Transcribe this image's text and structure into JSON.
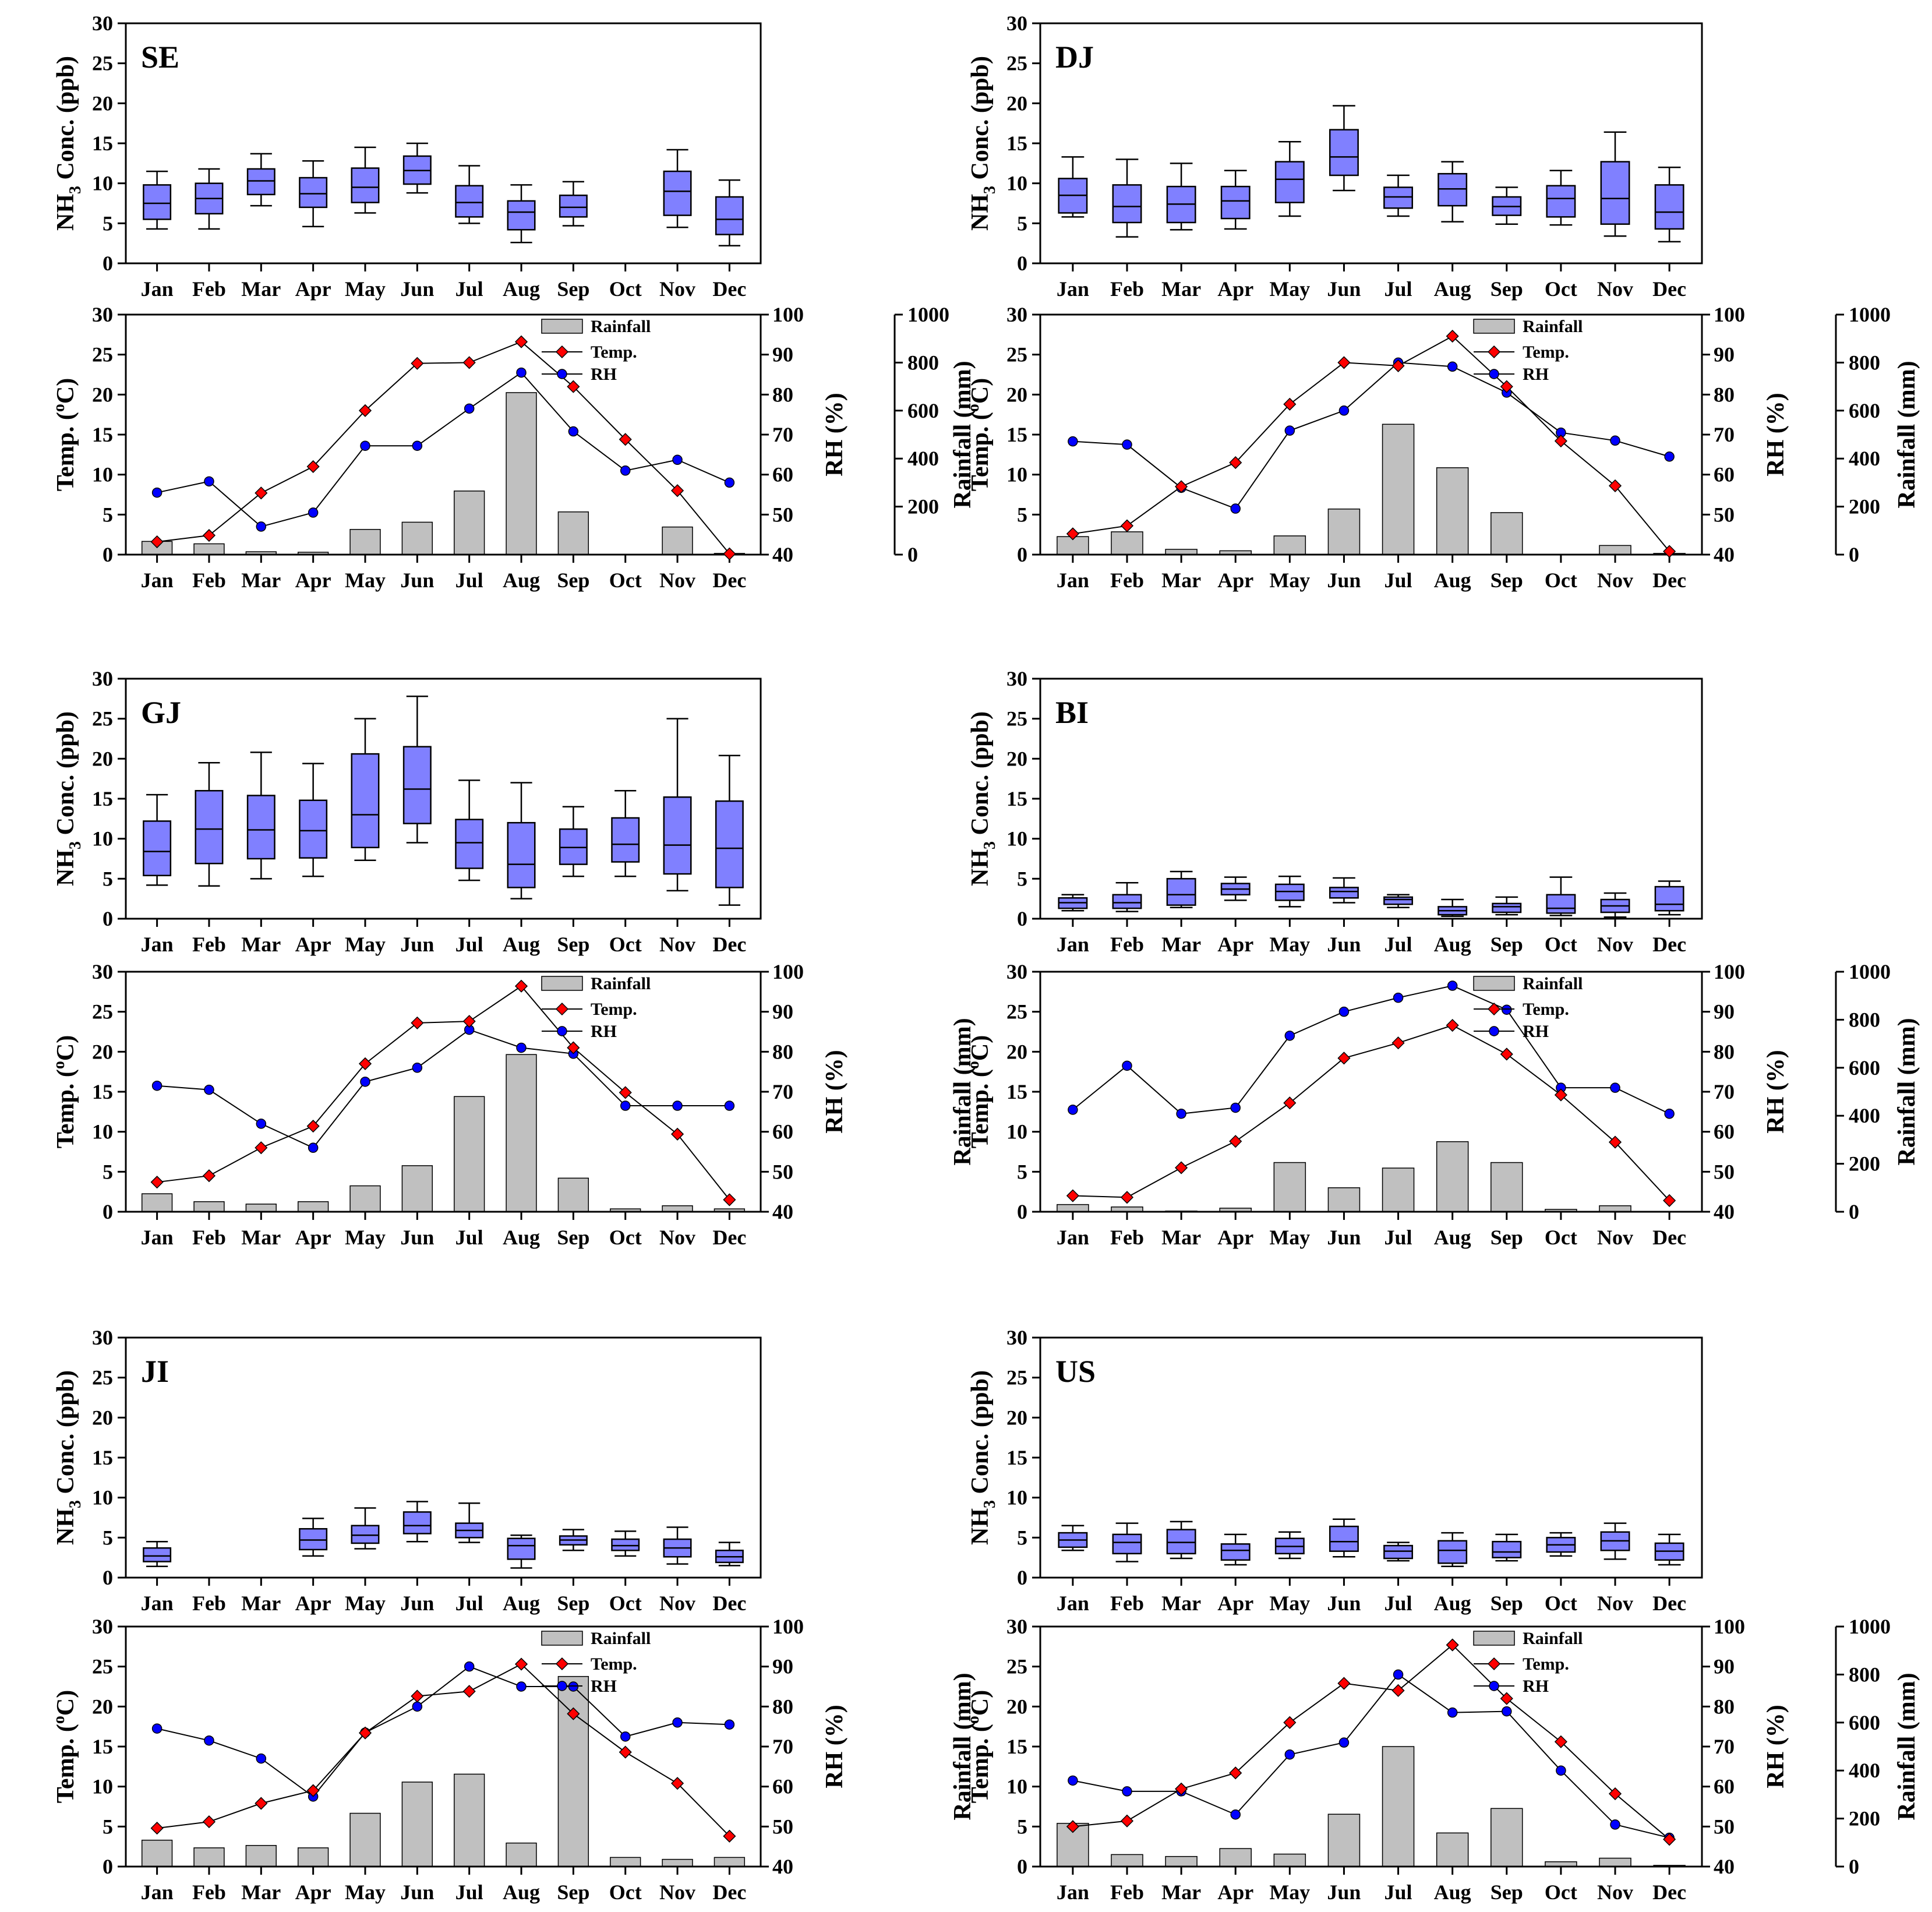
{
  "colors": {
    "box": "#8080ff",
    "bar": "#c0c0c0",
    "temp": "#ff0000",
    "rh": "#0000ff"
  },
  "chart_data": [
    {
      "type": "figure-panel",
      "label": "SE",
      "months": [
        "Jan",
        "Feb",
        "Mar",
        "Apr",
        "May",
        "Jun",
        "Jul",
        "Aug",
        "Sep",
        "Oct",
        "Nov",
        "Dec"
      ],
      "box": {
        "ylabel_main": "NH",
        "ylabel_sub": "3",
        "ylabel_rest": " Conc. (ppb)",
        "ylim": [
          0,
          30
        ],
        "yticks": [
          "0",
          "5",
          "10",
          "15",
          "20",
          "25",
          "30"
        ],
        "stats": [
          [
            4.3,
            5.5,
            7.5,
            9.8,
            11.5
          ],
          [
            4.3,
            6.2,
            8.1,
            10.0,
            11.8
          ],
          [
            7.2,
            8.6,
            10.3,
            11.8,
            13.7
          ],
          [
            4.6,
            7.0,
            8.7,
            10.7,
            12.8
          ],
          [
            6.3,
            7.6,
            9.5,
            11.9,
            14.5
          ],
          [
            8.8,
            9.9,
            11.6,
            13.4,
            15.0
          ],
          [
            5.0,
            5.8,
            7.6,
            9.7,
            12.2
          ],
          [
            2.6,
            4.2,
            6.4,
            7.8,
            9.8
          ],
          [
            4.7,
            5.8,
            7.0,
            8.5,
            10.2
          ],
          null,
          [
            4.5,
            6.0,
            9.0,
            11.5,
            14.2
          ],
          [
            2.2,
            3.6,
            5.5,
            8.3,
            10.4
          ]
        ]
      },
      "met": {
        "temp_label": "Temp. (",
        "temp_unit": "C)",
        "degree": "o",
        "rh_label": "RH (%)",
        "rain_label": "Rainfall (mm)",
        "temp_lim": [
          0,
          30
        ],
        "temp_ticks": [
          "0",
          "5",
          "10",
          "15",
          "20",
          "25",
          "30"
        ],
        "rh_lim": [
          40,
          100
        ],
        "rh_ticks": [
          "40",
          "50",
          "60",
          "70",
          "80",
          "90",
          "100"
        ],
        "rain_lim": [
          0,
          1000
        ],
        "rain_ticks": [
          "0",
          "200",
          "400",
          "600",
          "800",
          "1000"
        ],
        "legend": [
          "Rainfall",
          "Temp.",
          "RH"
        ],
        "rainfall": [
          55,
          45,
          12,
          10,
          105,
          135,
          265,
          675,
          178,
          0,
          115,
          5
        ],
        "temp": [
          1.6,
          2.4,
          7.7,
          11.0,
          18.0,
          23.9,
          24.0,
          26.6,
          21.0,
          14.4,
          8.0,
          0.1
        ],
        "rh": [
          55.5,
          58.3,
          47,
          50.5,
          67.2,
          67.2,
          76.5,
          85.5,
          70.8,
          61,
          63.7,
          58
        ]
      }
    },
    {
      "type": "figure-panel",
      "label": "DJ",
      "months": [
        "Jan",
        "Feb",
        "Mar",
        "Apr",
        "May",
        "Jun",
        "Jul",
        "Aug",
        "Sep",
        "Oct",
        "Nov",
        "Dec"
      ],
      "box": {
        "ylabel_main": "NH",
        "ylabel_sub": "3",
        "ylabel_rest": " Conc. (ppb)",
        "ylim": [
          0,
          30
        ],
        "yticks": [
          "0",
          "5",
          "10",
          "15",
          "20",
          "25",
          "30"
        ],
        "stats": [
          [
            5.8,
            6.3,
            8.5,
            10.6,
            13.3
          ],
          [
            3.3,
            5.1,
            7.1,
            9.8,
            13.0
          ],
          [
            4.2,
            5.1,
            7.4,
            9.6,
            12.5
          ],
          [
            4.3,
            5.6,
            7.8,
            9.6,
            11.6
          ],
          [
            5.9,
            7.6,
            10.5,
            12.7,
            15.2
          ],
          [
            9.1,
            11.0,
            13.3,
            16.7,
            19.7
          ],
          [
            5.9,
            6.9,
            8.3,
            9.5,
            11.0
          ],
          [
            5.2,
            7.2,
            9.3,
            11.2,
            12.7
          ],
          [
            4.9,
            6.0,
            7.1,
            8.3,
            9.5
          ],
          [
            4.8,
            5.8,
            8.1,
            9.7,
            11.6
          ],
          [
            3.4,
            4.9,
            8.1,
            12.7,
            16.4
          ],
          [
            2.7,
            4.3,
            6.4,
            9.8,
            12.0
          ]
        ]
      },
      "met": {
        "temp_label": "Temp. (",
        "temp_unit": "C)",
        "degree": "o",
        "rh_label": "RH (%)",
        "rain_label": "Rainfall (mm)",
        "temp_lim": [
          0,
          30
        ],
        "temp_ticks": [
          "0",
          "5",
          "10",
          "15",
          "20",
          "25",
          "30"
        ],
        "rh_lim": [
          40,
          100
        ],
        "rh_ticks": [
          "40",
          "50",
          "60",
          "70",
          "80",
          "90",
          "100"
        ],
        "rain_lim": [
          0,
          1000
        ],
        "rain_ticks": [
          "0",
          "200",
          "400",
          "600",
          "800",
          "1000"
        ],
        "legend": [
          "Rainfall",
          "Temp.",
          "RH"
        ],
        "rainfall": [
          75,
          95,
          22,
          16,
          78,
          190,
          543,
          362,
          175,
          0,
          38,
          5
        ],
        "temp": [
          2.6,
          3.6,
          8.5,
          11.5,
          18.8,
          24.0,
          23.6,
          27.3,
          21.0,
          14.2,
          8.6,
          0.4
        ],
        "rh": [
          68.3,
          67.5,
          56.7,
          51.5,
          71,
          76,
          88,
          87,
          80.5,
          70.5,
          68.5,
          64.5
        ]
      }
    },
    {
      "type": "figure-panel",
      "label": "GJ",
      "months": [
        "Jan",
        "Feb",
        "Mar",
        "Apr",
        "May",
        "Jun",
        "Jul",
        "Aug",
        "Sep",
        "Oct",
        "Nov",
        "Dec"
      ],
      "box": {
        "ylabel_main": "NH",
        "ylabel_sub": "3",
        "ylabel_rest": " Conc. (ppb)",
        "ylim": [
          0,
          30
        ],
        "yticks": [
          "0",
          "5",
          "10",
          "15",
          "20",
          "25",
          "30"
        ],
        "stats": [
          [
            4.2,
            5.4,
            8.4,
            12.2,
            15.5
          ],
          [
            4.1,
            6.9,
            11.2,
            16.0,
            19.5
          ],
          [
            5.0,
            7.5,
            11.1,
            15.4,
            20.8
          ],
          [
            5.3,
            7.6,
            11.0,
            14.8,
            19.4
          ],
          [
            7.3,
            8.9,
            13.0,
            20.6,
            25.0
          ],
          [
            9.5,
            11.9,
            16.2,
            21.5,
            27.8
          ],
          [
            4.8,
            6.3,
            9.5,
            12.4,
            17.3
          ],
          [
            2.5,
            3.9,
            6.8,
            12.0,
            17.0
          ],
          [
            5.3,
            6.8,
            8.9,
            11.2,
            14.0
          ],
          [
            5.3,
            7.1,
            9.3,
            12.6,
            16.0
          ],
          [
            3.5,
            5.6,
            9.2,
            15.2,
            25.0
          ],
          [
            1.7,
            3.9,
            8.8,
            14.7,
            20.4
          ]
        ]
      },
      "met": {
        "temp_label": "Temp. (",
        "temp_unit": "C)",
        "degree": "o",
        "rh_label": "RH (%)",
        "rain_label": "Rainfall (mm)",
        "temp_lim": [
          0,
          30
        ],
        "temp_ticks": [
          "0",
          "5",
          "10",
          "15",
          "20",
          "25",
          "30"
        ],
        "rh_lim": [
          40,
          100
        ],
        "rh_ticks": [
          "40",
          "50",
          "60",
          "70",
          "80",
          "90",
          "100"
        ],
        "rainfall": [
          75,
          42,
          32,
          42,
          108,
          192,
          480,
          655,
          140,
          12,
          25,
          12
        ],
        "legend": [
          "Rainfall",
          "Temp.",
          "RH"
        ],
        "temp": [
          3.7,
          4.5,
          8.0,
          10.7,
          18.5,
          23.6,
          23.8,
          28.2,
          20.5,
          14.9,
          9.7,
          1.5
        ],
        "rh": [
          71.5,
          70.5,
          62,
          56,
          72.5,
          76,
          85.5,
          81,
          79.5,
          66.5,
          66.5,
          66.5
        ]
      }
    },
    {
      "type": "figure-panel",
      "label": "BI",
      "months": [
        "Jan",
        "Feb",
        "Mar",
        "Apr",
        "May",
        "Jun",
        "Jul",
        "Aug",
        "Sep",
        "Oct",
        "Nov",
        "Dec"
      ],
      "box": {
        "ylabel_main": "NH",
        "ylabel_sub": "3",
        "ylabel_rest": " Conc. (ppb)",
        "ylim": [
          0,
          30
        ],
        "yticks": [
          "0",
          "5",
          "10",
          "15",
          "20",
          "25",
          "30"
        ],
        "stats": [
          [
            1.0,
            1.3,
            2.0,
            2.6,
            3.0
          ],
          [
            0.9,
            1.3,
            2.0,
            3.0,
            4.5
          ],
          [
            1.4,
            1.7,
            3.0,
            5.0,
            5.9
          ],
          [
            2.3,
            3.0,
            3.7,
            4.4,
            5.2
          ],
          [
            1.5,
            2.3,
            3.4,
            4.3,
            5.3
          ],
          [
            2.0,
            2.6,
            3.4,
            3.9,
            5.1
          ],
          [
            1.4,
            1.8,
            2.4,
            2.7,
            3.0
          ],
          [
            0.3,
            0.5,
            1.0,
            1.5,
            2.4
          ],
          [
            0.5,
            0.8,
            1.5,
            1.9,
            2.7
          ],
          [
            0.4,
            0.7,
            1.3,
            3.0,
            5.2
          ],
          [
            0.2,
            0.8,
            1.6,
            2.4,
            3.2
          ],
          [
            0.5,
            1.0,
            1.8,
            4.0,
            4.7
          ]
        ]
      },
      "met": {
        "temp_label": "Temp. (",
        "temp_unit": "C)",
        "degree": "o",
        "rh_label": "RH (%)",
        "rain_label": "Rainfall (mm)",
        "temp_lim": [
          0,
          30
        ],
        "temp_ticks": [
          "0",
          "5",
          "10",
          "15",
          "20",
          "25",
          "30"
        ],
        "rh_lim": [
          40,
          100
        ],
        "rh_ticks": [
          "40",
          "50",
          "60",
          "70",
          "80",
          "90",
          "100"
        ],
        "rain_lim": [
          0,
          1000
        ],
        "rain_ticks": [
          "0",
          "200",
          "400",
          "600",
          "800",
          "1000"
        ],
        "legend": [
          "Rainfall",
          "Temp.",
          "RH"
        ],
        "rainfall": [
          30,
          20,
          3,
          15,
          205,
          100,
          182,
          292,
          205,
          10,
          25,
          0
        ],
        "temp": [
          2.0,
          1.8,
          5.5,
          8.8,
          13.6,
          19.2,
          21.1,
          23.3,
          19.7,
          14.6,
          8.7,
          1.4
        ],
        "rh": [
          65.5,
          76.5,
          64.5,
          66,
          84,
          90,
          93.5,
          96.5,
          90.5,
          71,
          71,
          64.5
        ]
      }
    },
    {
      "type": "figure-panel",
      "label": "JI",
      "months": [
        "Jan",
        "Feb",
        "Mar",
        "Apr",
        "May",
        "Jun",
        "Jul",
        "Aug",
        "Sep",
        "Oct",
        "Nov",
        "Dec"
      ],
      "box": {
        "ylabel_main": "NH",
        "ylabel_sub": "3",
        "ylabel_rest": " Conc. (ppb)",
        "ylim": [
          0,
          30
        ],
        "yticks": [
          "0",
          "5",
          "10",
          "15",
          "20",
          "25",
          "30"
        ],
        "stats": [
          [
            1.4,
            2.0,
            2.7,
            3.7,
            4.5
          ],
          null,
          null,
          [
            2.7,
            3.5,
            4.7,
            6.1,
            7.4
          ],
          [
            3.6,
            4.3,
            5.3,
            6.5,
            8.7
          ],
          [
            4.5,
            5.5,
            6.5,
            8.2,
            9.5
          ],
          [
            4.4,
            5.0,
            5.9,
            6.8,
            9.3
          ],
          [
            1.2,
            2.3,
            4.0,
            4.9,
            5.3
          ],
          [
            3.4,
            4.1,
            4.7,
            5.2,
            6.0
          ],
          [
            2.7,
            3.4,
            4.0,
            4.8,
            5.8
          ],
          [
            1.7,
            2.6,
            3.7,
            4.8,
            6.3
          ],
          [
            1.5,
            1.9,
            2.6,
            3.4,
            4.4
          ]
        ]
      },
      "met": {
        "temp_label": "Temp. (",
        "temp_unit": "C)",
        "degree": "o",
        "rh_label": "RH (%)",
        "rain_label": "Rainfall (mm)",
        "temp_lim": [
          0,
          30
        ],
        "temp_ticks": [
          "0",
          "5",
          "10",
          "15",
          "20",
          "25",
          "30"
        ],
        "rh_lim": [
          40,
          100
        ],
        "rh_ticks": [
          "40",
          "50",
          "60",
          "70",
          "80",
          "90",
          "100"
        ],
        "legend": [
          "Rainfall",
          "Temp.",
          "RH"
        ],
        "rainfall": [
          110,
          78,
          88,
          78,
          222,
          352,
          385,
          98,
          792,
          38,
          30,
          38
        ],
        "temp": [
          4.8,
          5.6,
          7.9,
          9.5,
          16.7,
          21.3,
          21.9,
          25.3,
          19.1,
          14.3,
          10.4,
          3.8
        ],
        "rh": [
          74.5,
          71.5,
          67,
          57.5,
          73.5,
          80,
          90,
          85,
          85,
          72.5,
          76,
          75.5
        ]
      }
    },
    {
      "type": "figure-panel",
      "label": "US",
      "months": [
        "Jan",
        "Feb",
        "Mar",
        "Apr",
        "May",
        "Jun",
        "Jul",
        "Aug",
        "Sep",
        "Oct",
        "Nov",
        "Dec"
      ],
      "box": {
        "ylabel_main": "NH",
        "ylabel_sub": "3",
        "ylabel_rest": " Conc. (ppb)",
        "ylim": [
          0,
          30
        ],
        "yticks": [
          "0",
          "5",
          "10",
          "15",
          "20",
          "25",
          "30"
        ],
        "stats": [
          [
            3.4,
            3.8,
            4.7,
            5.6,
            6.5
          ],
          [
            2.0,
            3.0,
            4.4,
            5.4,
            6.8
          ],
          [
            2.4,
            3.0,
            4.4,
            6.0,
            7.0
          ],
          [
            1.6,
            2.2,
            3.4,
            4.2,
            5.4
          ],
          [
            2.4,
            3.0,
            3.9,
            4.9,
            5.7
          ],
          [
            2.6,
            3.3,
            4.5,
            6.4,
            7.3
          ],
          [
            2.1,
            2.4,
            3.3,
            4.0,
            4.4
          ],
          [
            1.4,
            1.8,
            3.4,
            4.6,
            5.6
          ],
          [
            2.1,
            2.5,
            3.2,
            4.5,
            5.4
          ],
          [
            2.7,
            3.2,
            4.1,
            5.0,
            5.6
          ],
          [
            2.3,
            3.4,
            4.6,
            5.7,
            6.8
          ],
          [
            1.6,
            2.2,
            3.3,
            4.3,
            5.4
          ]
        ]
      },
      "met": {
        "temp_label": "Temp. (",
        "temp_unit": "C)",
        "degree": "o",
        "rh_label": "RH (%)",
        "rain_label": "Rainfall (mm)",
        "temp_lim": [
          0,
          30
        ],
        "temp_ticks": [
          "0",
          "5",
          "10",
          "15",
          "20",
          "25",
          "30"
        ],
        "rh_lim": [
          40,
          100
        ],
        "rh_ticks": [
          "40",
          "50",
          "60",
          "70",
          "80",
          "90",
          "100"
        ],
        "rain_lim": [
          0,
          1000
        ],
        "rain_ticks": [
          "0",
          "200",
          "400",
          "600",
          "800",
          "1000"
        ],
        "legend": [
          "Rainfall",
          "Temp.",
          "RH"
        ],
        "rainfall": [
          180,
          50,
          42,
          75,
          52,
          218,
          500,
          140,
          242,
          20,
          35,
          5
        ],
        "temp": [
          5.0,
          5.7,
          9.7,
          11.7,
          18.0,
          22.9,
          22.0,
          27.7,
          21.0,
          15.6,
          9.1,
          3.4
        ],
        "rh": [
          61.5,
          58.8,
          58.8,
          53,
          68,
          71,
          88,
          78.5,
          78.8,
          64,
          50.5,
          47.2
        ]
      }
    }
  ]
}
